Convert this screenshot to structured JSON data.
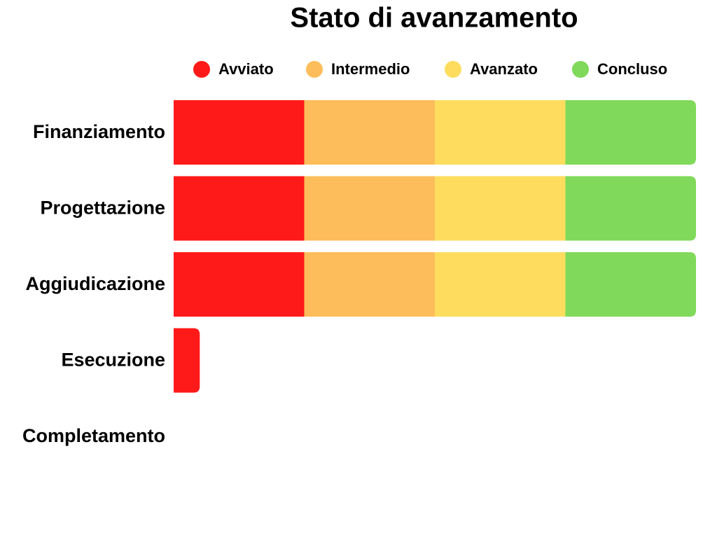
{
  "chart_data": {
    "type": "stacked-bar",
    "orientation": "horizontal",
    "title": "Stato di avanzamento",
    "categories": [
      "Finanziamento",
      "Progettazione",
      "Aggiudicazione",
      "Esecuzione",
      "Completamento"
    ],
    "series": [
      {
        "name": "Avviato",
        "color": "#ff1a1a",
        "values": [
          25,
          25,
          25,
          5,
          0
        ]
      },
      {
        "name": "Intermedio",
        "color": "#fdbd5a",
        "values": [
          25,
          25,
          25,
          0,
          0
        ]
      },
      {
        "name": "Avanzato",
        "color": "#fedd5e",
        "values": [
          25,
          25,
          25,
          0,
          0
        ]
      },
      {
        "name": "Concluso",
        "color": "#80d95a",
        "values": [
          25,
          25,
          25,
          0,
          0
        ]
      }
    ],
    "xlim": [
      0,
      100
    ],
    "legend": "top"
  }
}
